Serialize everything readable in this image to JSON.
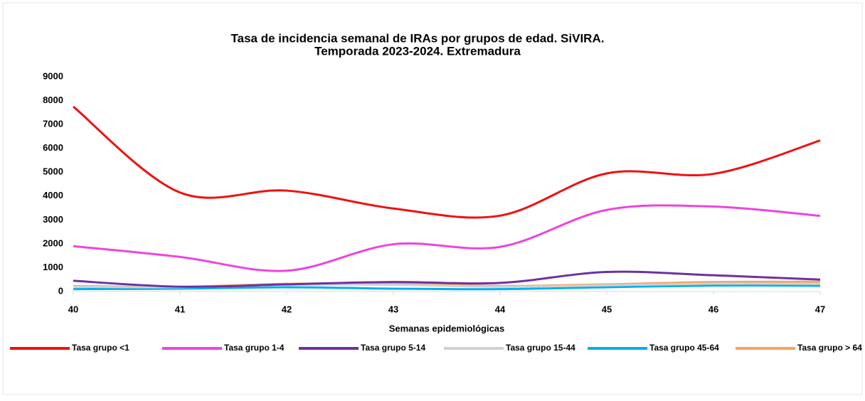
{
  "chart_data": {
    "type": "line",
    "title": "Tasa de incidencia semanal de IRAs por grupos de edad. SiVIRA.",
    "subtitle": "Temporada 2023-2024. Extremadura",
    "x_label": "Semanas epidemiológicas",
    "categories": [
      "40",
      "41",
      "42",
      "43",
      "44",
      "45",
      "46",
      "47"
    ],
    "ylim": [
      0,
      9000
    ],
    "yticks": [
      0,
      1000,
      2000,
      3000,
      4000,
      5000,
      6000,
      7000,
      8000,
      9000
    ],
    "grid": false,
    "legend": "bottom",
    "series": [
      {
        "name": "Tasa grupo <1",
        "color": "#ee1111",
        "values": [
          7750,
          4150,
          4230,
          3480,
          3180,
          4950,
          4930,
          6330
        ]
      },
      {
        "name": "Tasa grupo 1-4",
        "color": "#ee44dd",
        "values": [
          1900,
          1450,
          870,
          1980,
          1870,
          3420,
          3560,
          3170
        ]
      },
      {
        "name": "Tasa grupo 5-14",
        "color": "#7030a0",
        "values": [
          450,
          200,
          300,
          400,
          360,
          820,
          680,
          500
        ]
      },
      {
        "name": "Tasa grupo 15-44",
        "color": "#d0d0d0",
        "values": [
          200,
          180,
          280,
          280,
          200,
          260,
          330,
          320
        ]
      },
      {
        "name": "Tasa grupo 45-64",
        "color": "#00b0f0",
        "values": [
          100,
          120,
          180,
          120,
          100,
          180,
          250,
          240
        ]
      },
      {
        "name": "Tasa grupo > 64",
        "color": "#f4a460",
        "values": [
          230,
          200,
          320,
          330,
          230,
          300,
          400,
          410
        ]
      }
    ]
  }
}
